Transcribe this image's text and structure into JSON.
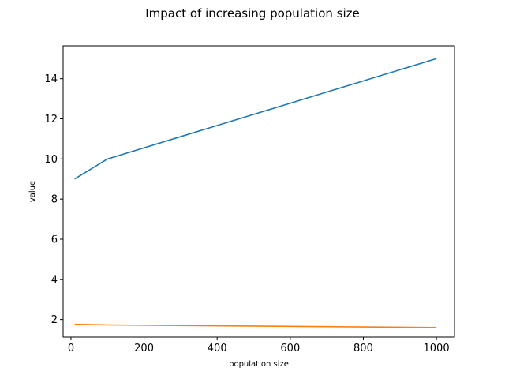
{
  "chart_data": {
    "type": "line",
    "title": "Impact of increasing population size",
    "xlabel": "population size",
    "ylabel": "value",
    "xlim": [
      -21.5,
      1049.5
    ],
    "ylim": [
      1.12,
      15.64
    ],
    "xticks": [
      0,
      200,
      400,
      600,
      800,
      1000
    ],
    "yticks": [
      2,
      4,
      6,
      8,
      10,
      12,
      14
    ],
    "grid": false,
    "series": [
      {
        "color": "#1f77b4",
        "x": [
          10,
          100,
          1000
        ],
        "y": [
          9.0,
          10.0,
          15.0
        ]
      },
      {
        "color": "#ff7f0e",
        "x": [
          10,
          100,
          1000
        ],
        "y": [
          1.76,
          1.73,
          1.6
        ]
      }
    ]
  }
}
